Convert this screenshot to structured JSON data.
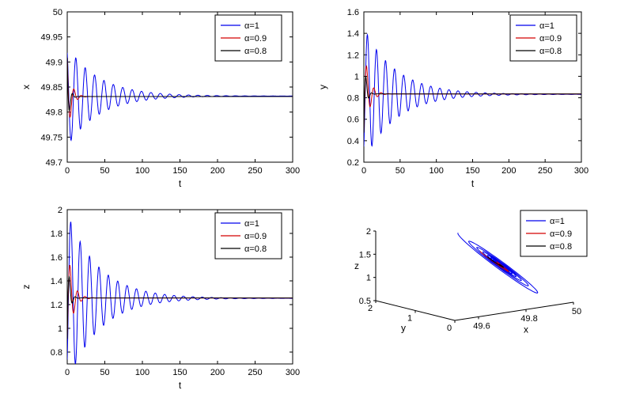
{
  "figure": {
    "background": "#ffffff",
    "description": "Four MATLAB-style subplots: time series of x, y, z converging to equilibrium for three fractional orders, plus 3D phase portrait spiral",
    "legend_entries": [
      {
        "label": "α=1",
        "color": "#0000EE"
      },
      {
        "label": "α=0.9",
        "color": "#D40000"
      },
      {
        "label": "α=0.8",
        "color": "#000000"
      }
    ]
  },
  "chart_data": [
    {
      "id": "x-vs-t",
      "type": "line",
      "title": "",
      "xlabel": "t",
      "ylabel": "x",
      "xlim": [
        0,
        300
      ],
      "ylim": [
        49.7,
        50
      ],
      "grid": false,
      "legend_position": "upper-right",
      "xtick_vals": [
        0,
        50,
        100,
        150,
        200,
        250,
        300
      ],
      "xtick_labels": [
        "0",
        "50",
        "100",
        "150",
        "200",
        "250",
        "300"
      ],
      "ytick_vals": [
        49.7,
        49.75,
        49.8,
        49.85,
        49.9,
        49.95,
        50
      ],
      "ytick_labels": [
        "49.7",
        "49.75",
        "49.8",
        "49.85",
        "49.9",
        "49.95",
        "50"
      ],
      "steady_state": 49.832,
      "series": [
        {
          "name": "α=1",
          "color": "#0000EE",
          "model": {
            "eq": 49.832,
            "amp": 0.1,
            "decay": 42,
            "period": 12.5,
            "phase": 2.1
          },
          "keypoints": [
            [
              0,
              49.92
            ],
            [
              5,
              49.74
            ],
            [
              12,
              49.9
            ],
            [
              100,
              49.85
            ],
            [
              200,
              49.832
            ],
            [
              300,
              49.832
            ]
          ],
          "description": "slowly damped oscillation, envelope 49.92/49.74, settles near t=200"
        },
        {
          "name": "α=0.9",
          "color": "#D40000",
          "model": {
            "eq": 49.831,
            "amp": 0.09,
            "decay": 5.0,
            "period": 10,
            "phase": 2.1
          },
          "keypoints": [
            [
              0,
              49.91
            ],
            [
              4,
              49.79
            ],
            [
              10,
              49.85
            ],
            [
              25,
              49.831
            ],
            [
              300,
              49.831
            ]
          ],
          "description": "rapidly damped, settles near t=25"
        },
        {
          "name": "α=0.8",
          "color": "#000000",
          "model": {
            "eq": 49.831,
            "amp": 0.09,
            "decay": 2.6,
            "period": 8,
            "phase": 2.1
          },
          "keypoints": [
            [
              0,
              49.91
            ],
            [
              3,
              49.81
            ],
            [
              8,
              49.84
            ],
            [
              15,
              49.831
            ],
            [
              300,
              49.831
            ]
          ],
          "description": "most rapidly damped, settles near t=12"
        }
      ]
    },
    {
      "id": "y-vs-t",
      "type": "line",
      "title": "",
      "xlabel": "t",
      "ylabel": "y",
      "xlim": [
        0,
        300
      ],
      "ylim": [
        0.2,
        1.6
      ],
      "grid": false,
      "legend_position": "upper-right",
      "xtick_vals": [
        0,
        50,
        100,
        150,
        200,
        250,
        300
      ],
      "xtick_labels": [
        "0",
        "50",
        "100",
        "150",
        "200",
        "250",
        "300"
      ],
      "ytick_vals": [
        0.2,
        0.4,
        0.6,
        0.8,
        1,
        1.2,
        1.4,
        1.6
      ],
      "ytick_labels": [
        "0.2",
        "0.4",
        "0.6",
        "0.8",
        "1",
        "1.2",
        "1.4",
        "1.6"
      ],
      "steady_state": 0.832,
      "series": [
        {
          "name": "α=1",
          "color": "#0000EE",
          "model": {
            "eq": 0.832,
            "amp": 0.62,
            "decay": 44,
            "period": 12.5,
            "phase": -0.9
          },
          "keypoints": [
            [
              0,
              0.35
            ],
            [
              5,
              1.43
            ],
            [
              11,
              0.4
            ],
            [
              100,
              0.89
            ],
            [
              200,
              0.832
            ],
            [
              300,
              0.832
            ]
          ],
          "description": "slowly damped oscillation, first peak 1.43, settles near t=200"
        },
        {
          "name": "α=0.9",
          "color": "#D40000",
          "model": {
            "eq": 0.836,
            "amp": 0.46,
            "decay": 6.5,
            "period": 10,
            "phase": -0.9
          },
          "keypoints": [
            [
              0,
              0.48
            ],
            [
              4,
              1.09
            ],
            [
              9,
              0.62
            ],
            [
              25,
              0.836
            ],
            [
              300,
              0.836
            ]
          ],
          "description": "rapidly damped, peak ~1.1, settles near t=25"
        },
        {
          "name": "α=0.8",
          "color": "#000000",
          "model": {
            "eq": 0.836,
            "amp": 0.46,
            "decay": 2.8,
            "period": 8,
            "phase": -0.9
          },
          "keypoints": [
            [
              0,
              0.48
            ],
            [
              3,
              0.98
            ],
            [
              7,
              0.72
            ],
            [
              15,
              0.836
            ],
            [
              300,
              0.836
            ]
          ],
          "description": "most rapidly damped, settles near t=12"
        }
      ]
    },
    {
      "id": "z-vs-t",
      "type": "line",
      "title": "",
      "xlabel": "t",
      "ylabel": "z",
      "xlim": [
        0,
        300
      ],
      "ylim": [
        0.7,
        2
      ],
      "grid": false,
      "legend_position": "upper-right",
      "xtick_vals": [
        0,
        50,
        100,
        150,
        200,
        250,
        300
      ],
      "xtick_labels": [
        "0",
        "50",
        "100",
        "150",
        "200",
        "250",
        "300"
      ],
      "ytick_vals": [
        0.8,
        1,
        1.2,
        1.4,
        1.6,
        1.8,
        2
      ],
      "ytick_labels": [
        "0.8",
        "1",
        "1.2",
        "1.4",
        "1.6",
        "1.8",
        "2"
      ],
      "steady_state": 1.253,
      "series": [
        {
          "name": "α=1",
          "color": "#0000EE",
          "model": {
            "eq": 1.253,
            "amp": 0.72,
            "decay": 42,
            "period": 12.5,
            "phase": -0.8
          },
          "keypoints": [
            [
              0,
              0.95
            ],
            [
              4.7,
              1.95
            ],
            [
              11,
              0.75
            ],
            [
              100,
              1.33
            ],
            [
              200,
              1.253
            ],
            [
              300,
              1.253
            ]
          ],
          "description": "slowly damped oscillation, first peak 1.95, settles near t=200"
        },
        {
          "name": "α=0.9",
          "color": "#D40000",
          "model": {
            "eq": 1.256,
            "amp": 0.48,
            "decay": 6.5,
            "period": 10,
            "phase": -0.8
          },
          "keypoints": [
            [
              0,
              0.91
            ],
            [
              3.8,
              1.45
            ],
            [
              9,
              1.05
            ],
            [
              25,
              1.256
            ],
            [
              300,
              1.256
            ]
          ],
          "description": "rapidly damped, peak ~1.45, settles near t=25"
        },
        {
          "name": "α=0.8",
          "color": "#000000",
          "model": {
            "eq": 1.256,
            "amp": 0.48,
            "decay": 2.8,
            "period": 8,
            "phase": -0.8
          },
          "keypoints": [
            [
              0,
              0.91
            ],
            [
              3,
              1.35
            ],
            [
              7,
              1.13
            ],
            [
              15,
              1.256
            ],
            [
              300,
              1.256
            ]
          ],
          "description": "most rapidly damped, settles near t=12"
        }
      ]
    },
    {
      "id": "phase-portrait-3d",
      "type": "line3d",
      "title": "",
      "xlabel": "x",
      "ylabel": "y",
      "zlabel": "z",
      "xlim": [
        49.5,
        50
      ],
      "ylim": [
        0,
        2
      ],
      "zlim": [
        0.5,
        2
      ],
      "grid": false,
      "legend_position": "upper-right",
      "xtick_vals": [
        49.6,
        49.8,
        50
      ],
      "xtick_labels": [
        "49.6",
        "49.8",
        "50"
      ],
      "ytick_vals": [
        0,
        1,
        2
      ],
      "ytick_labels": [
        "0",
        "1",
        "2"
      ],
      "ztick_vals": [
        0.5,
        1,
        1.5,
        2
      ],
      "ztick_labels": [
        "0.5",
        "1",
        "1.5",
        "2"
      ],
      "attractor": [
        49.832,
        0.832,
        1.253
      ],
      "series": [
        {
          "name": "α=1",
          "color": "#0000EE",
          "t_start": 4.7,
          "t_end": 170,
          "x": {
            "eq": 49.832,
            "amp": 0.1,
            "decay": 42,
            "period": 12.5,
            "phase": 2.1
          },
          "y": {
            "eq": 0.832,
            "amp": 0.62,
            "decay": 44,
            "period": 12.5,
            "phase": -0.9
          },
          "z": {
            "eq": 1.253,
            "amp": 0.72,
            "decay": 42,
            "period": 12.5,
            "phase": -0.8
          },
          "description": "many-turn spiral converging to attractor (49.83, 0.83, 1.25), tail from z≈2"
        },
        {
          "name": "α=0.9",
          "color": "#D40000",
          "t_start": 3.7,
          "t_end": 120,
          "x": {
            "eq": 49.831,
            "amp": 0.09,
            "decay": 5.0,
            "period": 10,
            "phase": 2.1
          },
          "y": {
            "eq": 0.836,
            "amp": 0.46,
            "decay": 6.5,
            "period": 10,
            "phase": -0.9
          },
          "z": {
            "eq": 1.256,
            "amp": 0.48,
            "decay": 6.5,
            "period": 10,
            "phase": -0.8
          },
          "description": "few-turn spiral converging quickly to attractor"
        },
        {
          "name": "α=0.8",
          "color": "#000000",
          "t_start": 3.0,
          "t_end": 100,
          "x": {
            "eq": 49.831,
            "amp": 0.09,
            "decay": 2.6,
            "period": 8,
            "phase": 2.1
          },
          "y": {
            "eq": 0.836,
            "amp": 0.46,
            "decay": 2.8,
            "period": 8,
            "phase": -0.9
          },
          "z": {
            "eq": 1.256,
            "amp": 0.48,
            "decay": 2.8,
            "period": 8,
            "phase": -0.8
          },
          "description": "shortest spiral, converges almost immediately"
        }
      ]
    }
  ]
}
